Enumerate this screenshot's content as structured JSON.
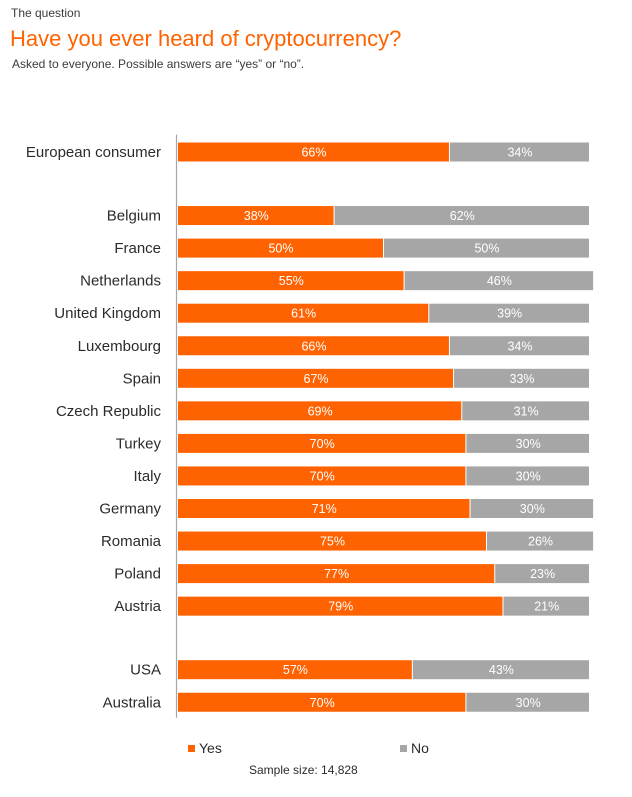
{
  "header": {
    "eyebrow": "The question",
    "title": "Have you ever heard of cryptocurrency?",
    "subtitle": "Asked to everyone. Possible answers are “yes” or “no”."
  },
  "chart_data": {
    "type": "bar",
    "orientation": "horizontal",
    "stacked": true,
    "title": "Have you ever heard of cryptocurrency?",
    "xlim": [
      0,
      100
    ],
    "groups": [
      [
        "European consumer"
      ],
      [
        "Belgium",
        "France",
        "Netherlands",
        "United Kingdom",
        "Luxembourg",
        "Spain",
        "Czech Republic",
        "Turkey",
        "Italy",
        "Germany",
        "Romania",
        "Poland",
        "Austria"
      ],
      [
        "USA",
        "Australia"
      ]
    ],
    "categories": [
      "European consumer",
      "Belgium",
      "France",
      "Netherlands",
      "United Kingdom",
      "Luxembourg",
      "Spain",
      "Czech Republic",
      "Turkey",
      "Italy",
      "Germany",
      "Romania",
      "Poland",
      "Austria",
      "USA",
      "Australia"
    ],
    "series": [
      {
        "name": "Yes",
        "color": "#ff6200",
        "values": [
          66,
          38,
          50,
          55,
          61,
          66,
          67,
          69,
          70,
          70,
          71,
          75,
          77,
          79,
          57,
          70
        ]
      },
      {
        "name": "No",
        "color": "#a6a6a6",
        "values": [
          34,
          62,
          50,
          46,
          39,
          34,
          33,
          31,
          30,
          30,
          30,
          26,
          23,
          21,
          43,
          30
        ]
      }
    ],
    "value_suffix": "%",
    "legend_position": "bottom"
  },
  "legend": {
    "yes_label": "Yes",
    "no_label": "No"
  },
  "footer": {
    "sample_size": "Sample size: 14,828"
  }
}
